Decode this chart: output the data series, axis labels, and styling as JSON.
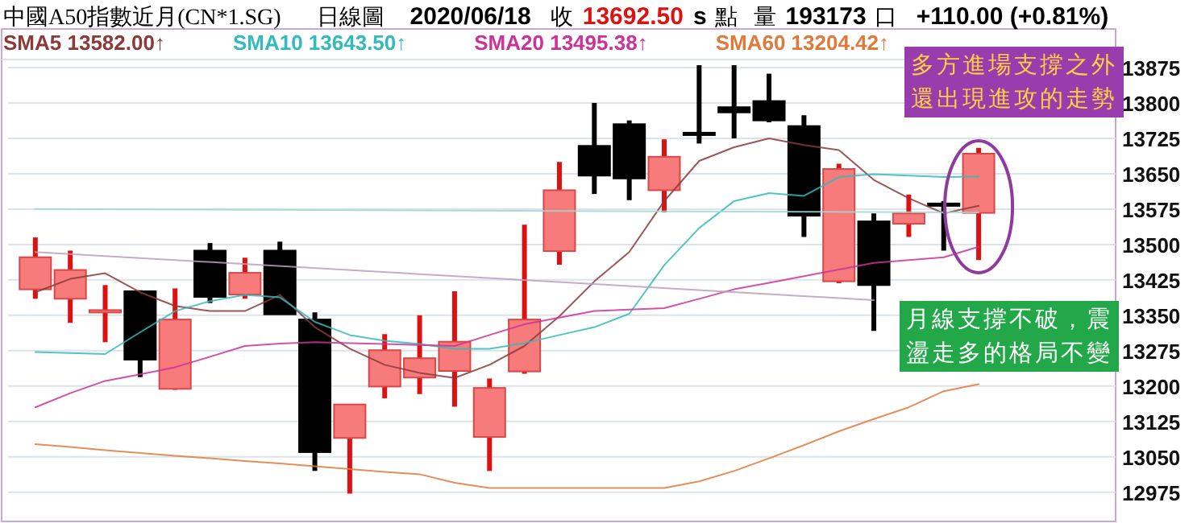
{
  "chart_data": {
    "type": "candlestick",
    "title": "中國A50指數近月(CN*1.SG)",
    "annotations": [
      "日線圖",
      "2020/06/18",
      "收",
      "13692.50",
      "s",
      "點",
      "量",
      "193173",
      "口",
      "+110.00 (+0.81%)",
      "多方進場支撐之外",
      "還出現進攻的走勢",
      "月線支撐不破，震",
      "盪走多的格局不變"
    ],
    "categories": [
      null,
      null,
      null,
      null,
      null,
      null,
      null,
      null,
      null,
      null,
      null,
      null,
      null,
      null,
      null,
      null,
      null,
      null,
      null,
      null,
      null,
      null,
      null,
      null,
      null,
      null,
      null,
      null
    ],
    "ohlc": [
      [
        13405,
        13515,
        13385,
        13473
      ],
      [
        13385,
        13487,
        13334,
        13446
      ],
      [
        13357,
        13414,
        13293,
        13361
      ],
      [
        13401,
        13403,
        13219,
        13256
      ],
      [
        13194,
        13407,
        13192,
        13341
      ],
      [
        13487,
        13503,
        13376,
        13389
      ],
      [
        13394,
        13472,
        13385,
        13440
      ],
      [
        13487,
        13506,
        13352,
        13352
      ],
      [
        13341,
        13356,
        13020,
        13060
      ],
      [
        13090,
        13161,
        12972,
        13161
      ],
      [
        13199,
        13310,
        13174,
        13276
      ],
      [
        13218,
        13350,
        13183,
        13259
      ],
      [
        13232,
        13401,
        13156,
        13294
      ],
      [
        13092,
        13216,
        13020,
        13196
      ],
      [
        13231,
        13542,
        13226,
        13341
      ],
      [
        13486,
        13675,
        13457,
        13615
      ],
      [
        13709,
        13800,
        13607,
        13646
      ],
      [
        13755,
        13763,
        13594,
        13640
      ],
      [
        13615,
        13723,
        13568,
        13686
      ],
      [
        13737,
        13880,
        13714,
        13733
      ],
      [
        13791,
        13880,
        13725,
        13780
      ],
      [
        13804,
        13862,
        13759,
        13763
      ],
      [
        13751,
        13774,
        13516,
        13561
      ],
      [
        13422,
        13671,
        13418,
        13660
      ],
      [
        13549,
        13566,
        13317,
        13414
      ],
      [
        13544,
        13606,
        13516,
        13566
      ],
      [
        13587,
        13592,
        13487,
        13584
      ],
      [
        13567,
        13705,
        13467,
        13692.5
      ]
    ],
    "colors": [
      "#f77b7b",
      "#f77b7b",
      "#f77b7b",
      "#000000",
      "#f77b7b",
      "#000000",
      "#f77b7b",
      "#000000",
      "#000000",
      "#f77b7b",
      "#f77b7b",
      "#f77b7b",
      "#f77b7b",
      "#f77b7b",
      "#f77b7b",
      "#f77b7b",
      "#000000",
      "#000000",
      "#f77b7b",
      "#000000",
      "#000000",
      "#000000",
      "#000000",
      "#f77b7b",
      "#000000",
      "#f77b7b",
      "#000000",
      "#f77b7b"
    ],
    "series": [
      {
        "type": "line",
        "name": "SMA5 13582.00↑",
        "color": "#8b3a3a",
        "values": [
          13399,
          13427,
          13439,
          13399,
          13370,
          13359,
          13359,
          13393,
          13325,
          13279,
          13245,
          13228,
          13217,
          13245,
          13285,
          13348,
          13422,
          13484,
          13592,
          13677,
          13706,
          13725,
          13711,
          13700,
          13637,
          13598,
          13566,
          13582
        ]
      },
      {
        "type": "line",
        "name": "SMA10 13643.50↑",
        "color": "#33bbbb",
        "values": [
          13272,
          13270,
          13268,
          13314,
          13359,
          13380,
          13393,
          13388,
          13336,
          13308,
          13296,
          13289,
          13279,
          13279,
          13291,
          13308,
          13325,
          13353,
          13456,
          13535,
          13592,
          13609,
          13603,
          13643,
          13649,
          13646,
          13643,
          13644
        ]
      },
      {
        "type": "line",
        "name": "SMA20 13495.38↑",
        "color": "#cc3399",
        "values": [
          13155,
          13185,
          13211,
          13225,
          13240,
          13262,
          13285,
          13290,
          13293,
          13291,
          13289,
          13287,
          13285,
          13308,
          13331,
          13345,
          13359,
          13362,
          13365,
          13385,
          13405,
          13419,
          13433,
          13447,
          13461,
          13467,
          13473,
          13495
        ]
      },
      {
        "type": "line",
        "name": "SMA60 13204.42↑",
        "color": "#e07a3a",
        "values": [
          13077,
          13071,
          13064,
          13058,
          13052,
          13047,
          13041,
          13036,
          13030,
          13024,
          13018,
          13013,
          12995,
          12984,
          12984,
          12984,
          12984,
          12984,
          12984,
          12998,
          13020,
          13047,
          13075,
          13104,
          13130,
          13155,
          13189,
          13204
        ]
      },
      {
        "type": "line",
        "color": "#9ed8d0",
        "values": [
          13575,
          null,
          null,
          null,
          null,
          null,
          null,
          null,
          null,
          null,
          null,
          null,
          null,
          null,
          null,
          null,
          null,
          null,
          null,
          null,
          null,
          null,
          null,
          null,
          null,
          null,
          null,
          13568
        ]
      },
      {
        "type": "line",
        "color": "#b8a0b8",
        "values": [
          13484,
          null,
          null,
          null,
          null,
          null,
          null,
          null,
          null,
          null,
          null,
          null,
          null,
          null,
          null,
          null,
          null,
          null,
          null,
          null,
          null,
          null,
          null,
          null,
          13382,
          null,
          null,
          null
        ]
      }
    ],
    "ylim": [
      12920,
      13892
    ],
    "yticks": [
      12975,
      13050,
      13125,
      13200,
      13275,
      13350,
      13425,
      13500,
      13575,
      13650,
      13725,
      13800,
      13875
    ],
    "grid": "y",
    "legend": "top"
  }
}
